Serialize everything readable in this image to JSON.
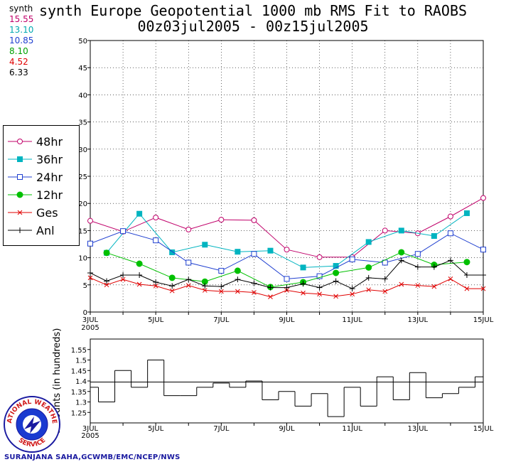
{
  "title": {
    "line1": "synth Europe Geopotential 1000 mb RMS Fit to RAOBS",
    "line2": "00z03jul2005 - 00z15jul2005"
  },
  "stats": {
    "label": "synth",
    "items": [
      {
        "value": "15.55",
        "color": "#c0006a"
      },
      {
        "value": "13.10",
        "color": "#00a8b0"
      },
      {
        "value": "10.85",
        "color": "#2040d0"
      },
      {
        "value": "8.10",
        "color": "#00a000"
      },
      {
        "value": "4.52",
        "color": "#e00000"
      },
      {
        "value": "6.33",
        "color": "#000000"
      }
    ]
  },
  "credit": "SURANJANA SAHA,GCWMB/EMC/NCEP/NWS",
  "logo_text": {
    "top": "NATIONAL WEATHER",
    "bottom": "SERVICE"
  },
  "chart_data": [
    {
      "type": "line",
      "title": "synth Europe Geopotential 1000 mb RMS Fit to RAOBS",
      "x_tick_labels": [
        "3JUL",
        "5JUL",
        "7JUL",
        "9JUL",
        "11JUL",
        "13JUL",
        "15JUL"
      ],
      "x_year_label": "2005",
      "xlim": [
        3,
        15
      ],
      "ylim": [
        0,
        50
      ],
      "yticks": [
        0,
        5,
        10,
        15,
        20,
        25,
        30,
        35,
        40,
        45,
        50
      ],
      "legend_position": "left",
      "series": [
        {
          "name": "48hr",
          "color": "#c0006a",
          "marker": "open-circle",
          "x": [
            3,
            4,
            5,
            6,
            7,
            8,
            9,
            10,
            11,
            12,
            13,
            14,
            15
          ],
          "values": [
            16.8,
            14.8,
            17.4,
            15.2,
            17.0,
            16.9,
            11.5,
            10.1,
            10.1,
            15.0,
            14.5,
            17.6,
            21.0
          ]
        },
        {
          "name": "36hr",
          "color": "#00b4c0",
          "marker": "filled-square",
          "x": [
            3.5,
            4.5,
            5.5,
            6.5,
            7.5,
            8.5,
            9.5,
            10.5,
            11.5,
            12.5,
            13.5,
            14.5
          ],
          "values": [
            10.9,
            18.1,
            11.0,
            12.4,
            11.1,
            11.3,
            8.2,
            8.5,
            12.9,
            15.0,
            14.0,
            18.2
          ]
        },
        {
          "name": "24hr",
          "color": "#2040d0",
          "marker": "open-square",
          "x": [
            3,
            4,
            5,
            6,
            7,
            8,
            9,
            10,
            11,
            12,
            13,
            14,
            15
          ],
          "values": [
            12.6,
            14.9,
            13.2,
            9.1,
            7.6,
            10.7,
            6.1,
            6.6,
            9.7,
            9.1,
            10.7,
            14.5,
            11.5
          ]
        },
        {
          "name": "12hr",
          "color": "#00c000",
          "marker": "filled-circle",
          "x": [
            3.5,
            4.5,
            5.5,
            6.5,
            7.5,
            8.5,
            9.5,
            10.5,
            11.5,
            12.5,
            13.5,
            14.5
          ],
          "values": [
            10.9,
            8.9,
            6.3,
            5.6,
            7.6,
            4.6,
            5.5,
            7.2,
            8.2,
            11.0,
            8.7,
            9.2
          ]
        },
        {
          "name": "Ges",
          "color": "#e00000",
          "marker": "x",
          "x": [
            3,
            3.5,
            4,
            4.5,
            5,
            5.5,
            6,
            6.5,
            7,
            7.5,
            8,
            8.5,
            9,
            9.5,
            10,
            10.5,
            11,
            11.5,
            12,
            12.5,
            13,
            13.5,
            14,
            14.5,
            15
          ],
          "values": [
            6.3,
            5.0,
            6.0,
            5.1,
            4.8,
            3.9,
            4.9,
            4.0,
            3.8,
            3.8,
            3.6,
            2.8,
            4.0,
            3.5,
            3.3,
            2.9,
            3.3,
            4.1,
            3.8,
            5.1,
            4.9,
            4.7,
            6.1,
            4.3,
            4.3
          ]
        },
        {
          "name": "Anl",
          "color": "#000000",
          "marker": "plus",
          "x": [
            3,
            3.5,
            4,
            4.5,
            5,
            5.5,
            6,
            6.5,
            7,
            7.5,
            8,
            8.5,
            9,
            9.5,
            10,
            10.5,
            11,
            11.5,
            12,
            12.5,
            13,
            13.5,
            14,
            14.5,
            15
          ],
          "values": [
            7.2,
            5.7,
            6.8,
            6.8,
            5.5,
            4.8,
            6.0,
            4.8,
            4.7,
            6.0,
            5.3,
            4.5,
            4.5,
            5.2,
            4.5,
            5.7,
            4.3,
            6.3,
            6.1,
            9.5,
            8.3,
            8.3,
            9.5,
            6.8,
            6.8
          ]
        }
      ]
    },
    {
      "type": "bar",
      "ylabel": "a Counts (in hundreds)",
      "x_tick_labels": [
        "3JUL",
        "5JUL",
        "7JUL",
        "9JUL",
        "11JUL",
        "13JUL",
        "15JUL"
      ],
      "x_year_label": "2005",
      "xlim": [
        3,
        15
      ],
      "ylim": [
        1.2,
        1.6
      ],
      "yticks": [
        1.25,
        1.3,
        1.35,
        1.4,
        1.45,
        1.5,
        1.55
      ],
      "reference_line": 1.395,
      "bin_width": 0.5,
      "x": [
        3,
        3.5,
        4,
        4.5,
        5,
        5.5,
        6,
        6.5,
        7,
        7.5,
        8,
        8.5,
        9,
        9.5,
        10,
        10.5,
        11,
        11.5,
        12,
        12.5,
        13,
        13.5,
        14,
        14.5,
        15
      ],
      "values": [
        1.37,
        1.3,
        1.45,
        1.37,
        1.5,
        1.33,
        1.33,
        1.37,
        1.39,
        1.37,
        1.4,
        1.31,
        1.35,
        1.28,
        1.34,
        1.23,
        1.37,
        1.28,
        1.42,
        1.31,
        1.44,
        1.32,
        1.34,
        1.37,
        1.42
      ]
    }
  ]
}
